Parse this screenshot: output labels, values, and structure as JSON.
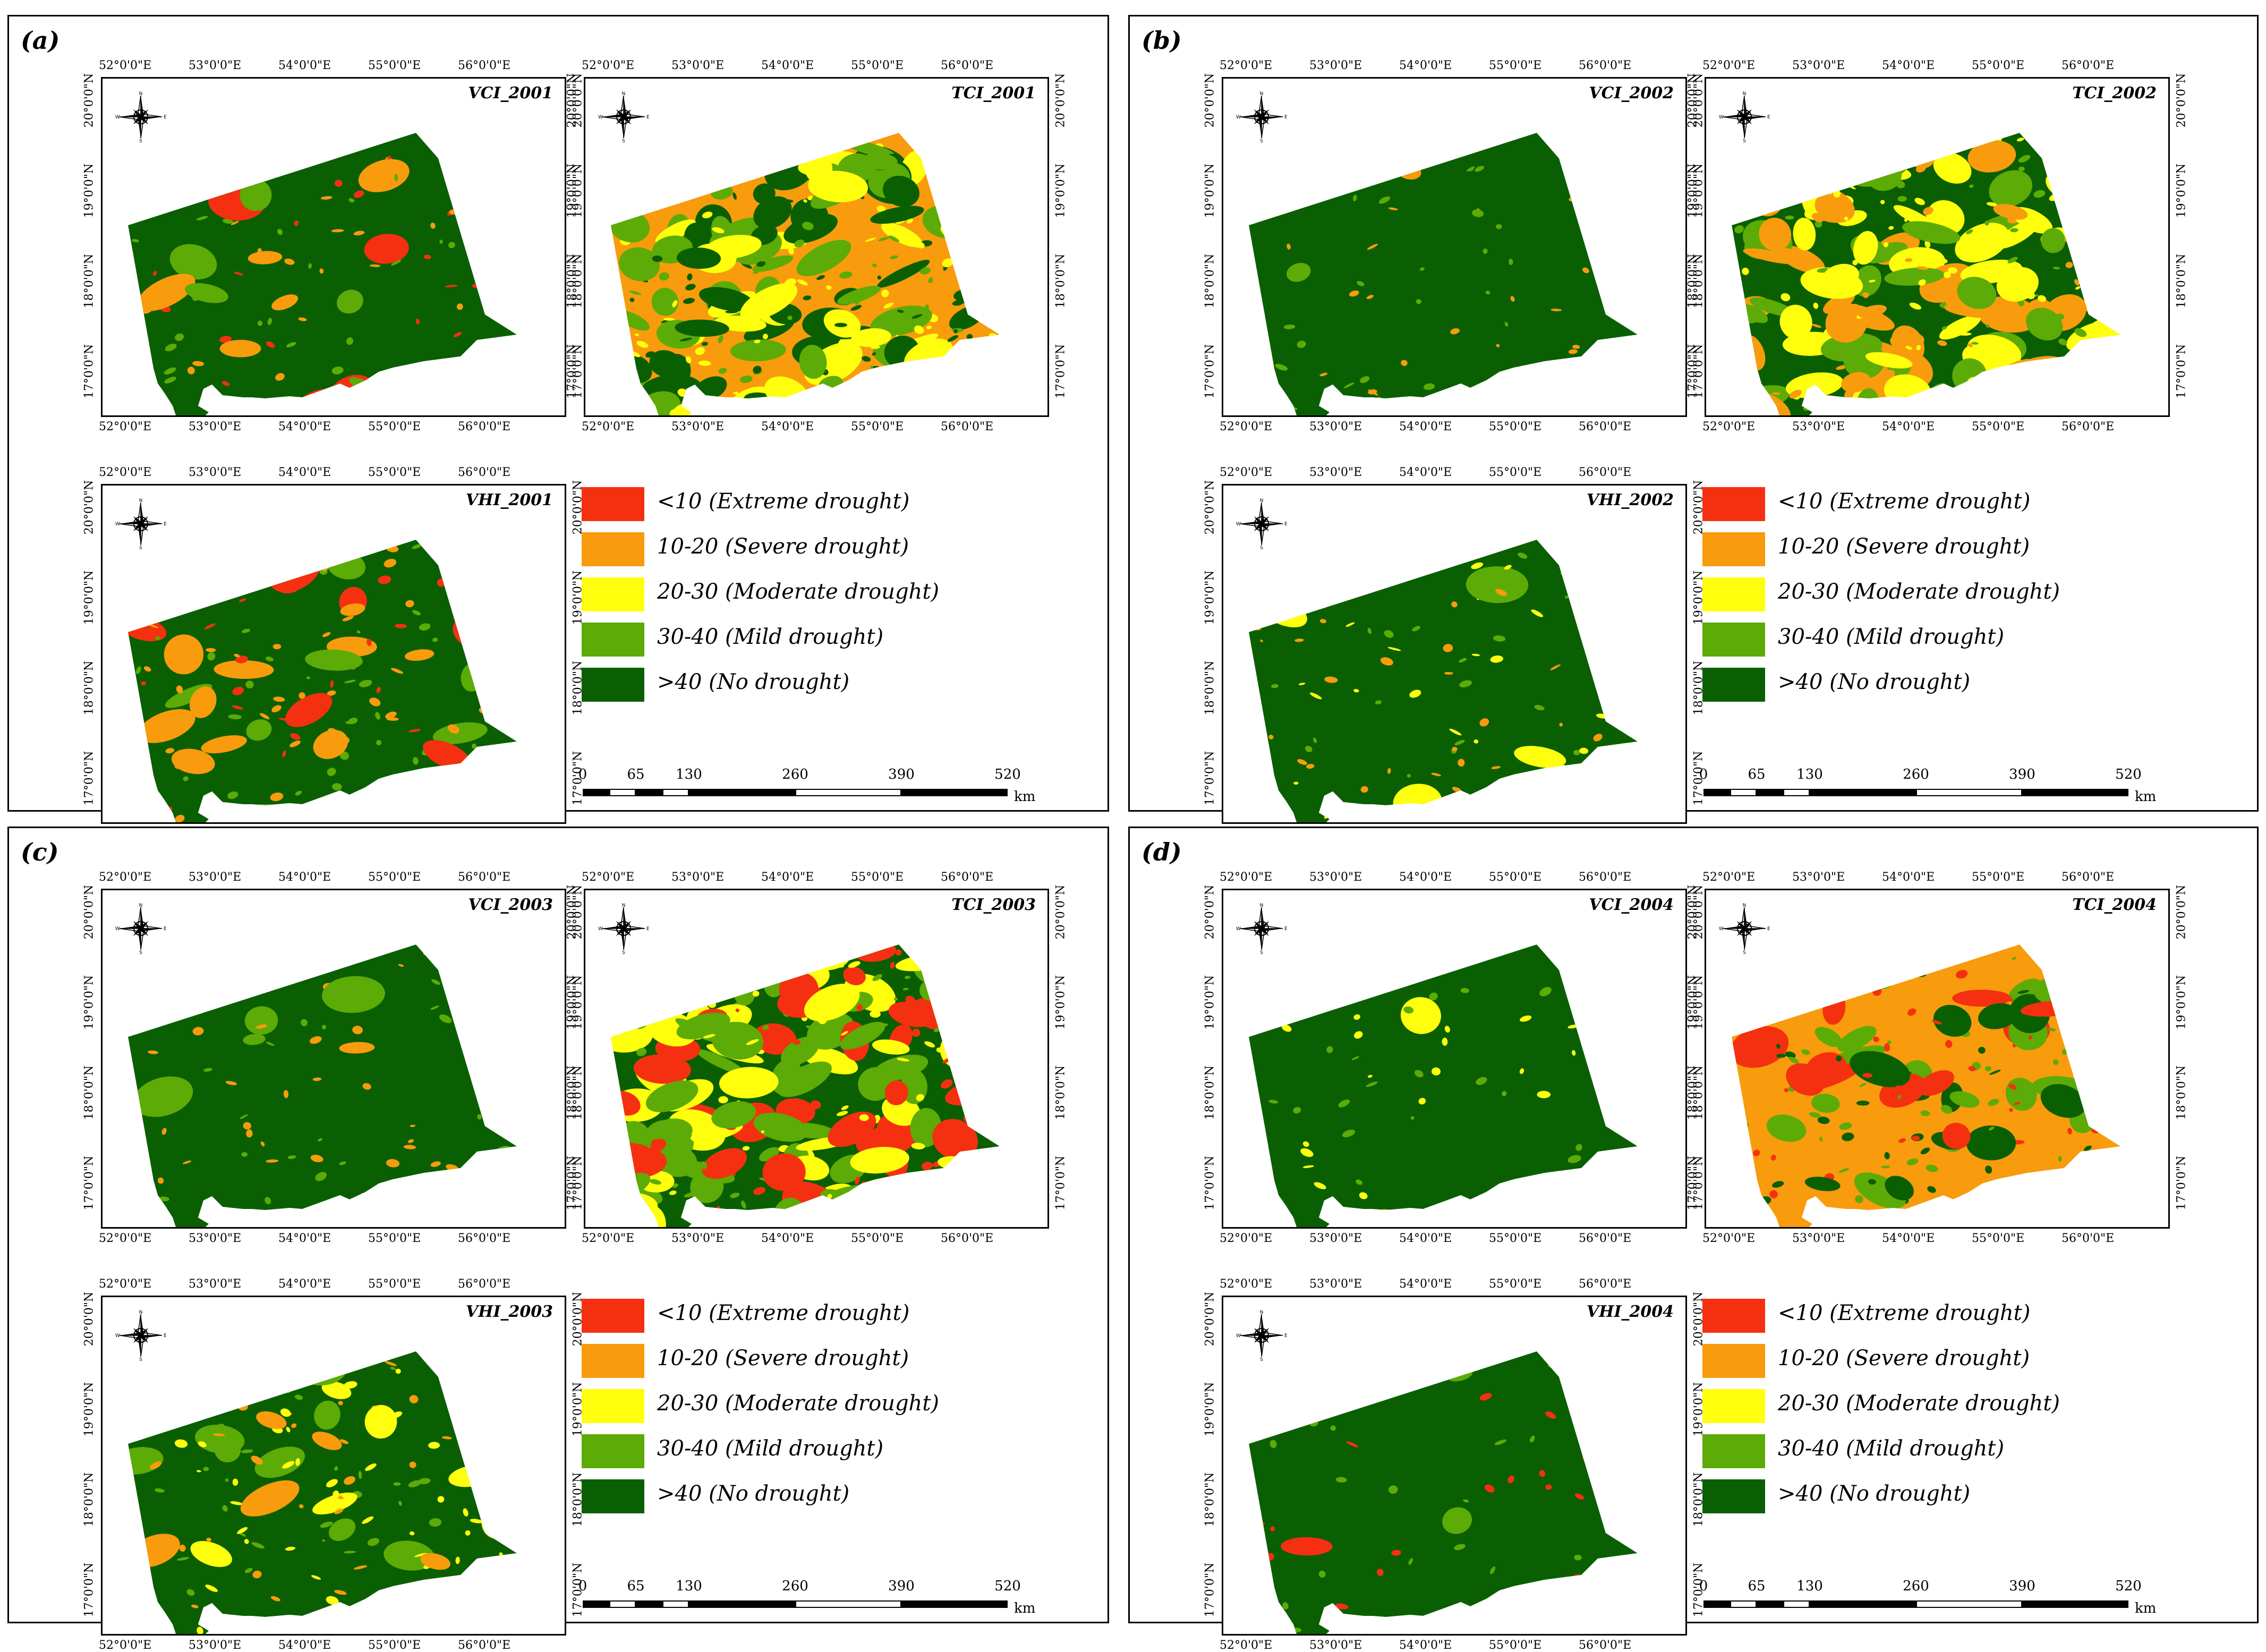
{
  "colors": {
    "extreme": "#f43010",
    "severe": "#f89b0c",
    "moderate": "#ffff0d",
    "mild": "#5cab06",
    "none": "#0a5f03"
  },
  "lon_ticks": [
    "52°0'0\"E",
    "53°0'0\"E",
    "54°0'0\"E",
    "55°0'0\"E",
    "56°0'0\"E"
  ],
  "lat_ticks": [
    "20°0'0\"N",
    "19°0'0\"N",
    "18°0'0\"N",
    "17°0'0\"N"
  ],
  "compass_label": "north-arrow",
  "legend": [
    {
      "label": "<10 (Extreme drought)",
      "color": "#f43010"
    },
    {
      "label": "10-20 (Severe drought)",
      "color": "#f89b0c"
    },
    {
      "label": "20-30 (Moderate drought)",
      "color": "#ffff0d"
    },
    {
      "label": "30-40 (Mild drought)",
      "color": "#5cab06"
    },
    {
      "label": ">40 (No drought)",
      "color": "#0a5f03"
    }
  ],
  "scale": {
    "labels": [
      "0",
      "65",
      "130",
      "260",
      "390",
      "520"
    ],
    "unit": "km"
  },
  "panels": [
    {
      "label": "(a)",
      "maps": [
        {
          "title": "VCI_2001",
          "dominant": "none",
          "secondary": [
            "mild",
            "extreme",
            "severe"
          ],
          "secondary_share": 0.12
        },
        {
          "title": "TCI_2001",
          "dominant": "severe",
          "secondary": [
            "none",
            "mild",
            "moderate"
          ],
          "secondary_share": 0.45
        },
        {
          "title": "VHI_2001",
          "dominant": "none",
          "secondary": [
            "severe",
            "mild",
            "extreme"
          ],
          "secondary_share": 0.22
        }
      ]
    },
    {
      "label": "(b)",
      "maps": [
        {
          "title": "VCI_2002",
          "dominant": "none",
          "secondary": [
            "mild",
            "severe"
          ],
          "secondary_share": 0.06
        },
        {
          "title": "TCI_2002",
          "dominant": "none",
          "secondary": [
            "severe",
            "mild",
            "moderate"
          ],
          "secondary_share": 0.45
        },
        {
          "title": "VHI_2002",
          "dominant": "none",
          "secondary": [
            "mild",
            "severe",
            "moderate"
          ],
          "secondary_share": 0.12
        }
      ]
    },
    {
      "label": "(c)",
      "maps": [
        {
          "title": "VCI_2003",
          "dominant": "none",
          "secondary": [
            "mild",
            "severe"
          ],
          "secondary_share": 0.08
        },
        {
          "title": "TCI_2003",
          "dominant": "none",
          "secondary": [
            "extreme",
            "mild",
            "moderate"
          ],
          "secondary_share": 0.42
        },
        {
          "title": "VHI_2003",
          "dominant": "none",
          "secondary": [
            "mild",
            "severe",
            "moderate"
          ],
          "secondary_share": 0.2
        }
      ]
    },
    {
      "label": "(d)",
      "maps": [
        {
          "title": "VCI_2004",
          "dominant": "none",
          "secondary": [
            "mild",
            "moderate"
          ],
          "secondary_share": 0.04
        },
        {
          "title": "TCI_2004",
          "dominant": "severe",
          "secondary": [
            "none",
            "mild",
            "extreme"
          ],
          "secondary_share": 0.25
        },
        {
          "title": "VHI_2004",
          "dominant": "none",
          "secondary": [
            "mild",
            "extreme"
          ],
          "secondary_share": 0.03
        }
      ]
    }
  ]
}
